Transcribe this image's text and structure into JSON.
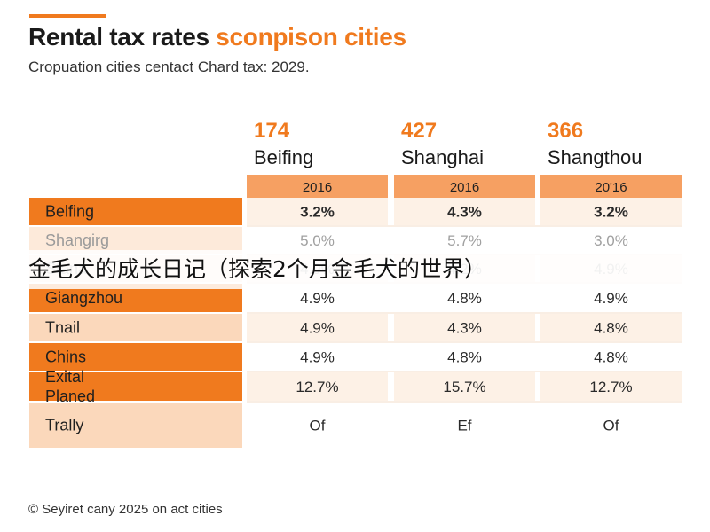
{
  "header": {
    "title_main": "Rental tax rates ",
    "title_accent": "sconpison cities",
    "subtitle": "Cropuation cities centact Chard tax: 2029."
  },
  "watermark": "金毛犬的成长日记（探索2个月金毛犬的世界）",
  "footer": "© Seyiret cany 2025 on act cities",
  "colors": {
    "accent": "#f07a1e",
    "header_band": "#f6a062",
    "label_dark": "#f07a1e",
    "label_light": "#fbd8bb",
    "cell_tint": "#fdf1e6"
  },
  "chart_data": {
    "type": "table",
    "columns": [
      {
        "number": "174",
        "city": "Beifing",
        "year": "2016"
      },
      {
        "number": "427",
        "city": "Shanghai",
        "year": "2016"
      },
      {
        "number": "366",
        "city": "Shangthou",
        "year": "20'16"
      }
    ],
    "rows": [
      {
        "label": "Belfing",
        "values": [
          "3.2%",
          "4.3%",
          "3.2%"
        ],
        "bold": true
      },
      {
        "label": "Shangirg",
        "values": [
          "5.0%",
          "5.7%",
          "3.0%"
        ],
        "faded": true
      },
      {
        "label": "Stana",
        "values": [
          "4.9%",
          "4.2%",
          "4.9%"
        ],
        "faded": true
      },
      {
        "label": "Giangzhou",
        "values": [
          "4.9%",
          "4.8%",
          "4.9%"
        ]
      },
      {
        "label": "Tnail",
        "values": [
          "4.9%",
          "4.3%",
          "4.8%"
        ]
      },
      {
        "label": "Chins",
        "values": [
          "4.9%",
          "4.8%",
          "4.8%"
        ]
      },
      {
        "label": "Exital\nPlaned",
        "values": [
          "12.7%",
          "15.7%",
          "12.7%"
        ]
      },
      {
        "label": "Trally",
        "values": [
          "Of",
          "Ef",
          "Of"
        ]
      }
    ]
  }
}
